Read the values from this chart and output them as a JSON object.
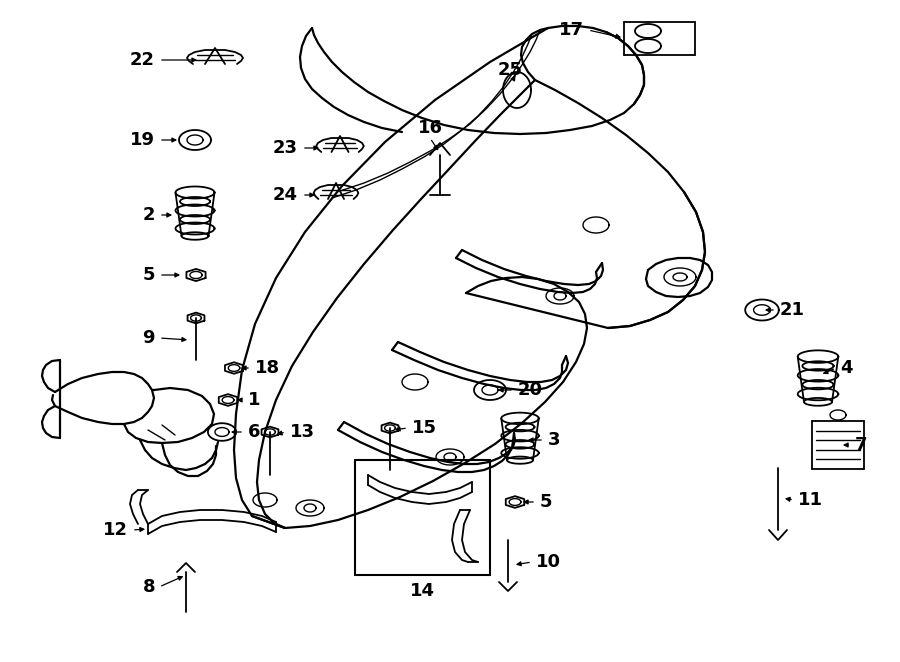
{
  "bg_color": "#ffffff",
  "fig_width": 9.0,
  "fig_height": 6.62,
  "dpi": 100,
  "lw_frame": 1.6,
  "lw_part": 1.3,
  "lw_thin": 1.0,
  "fs_label": 13
}
